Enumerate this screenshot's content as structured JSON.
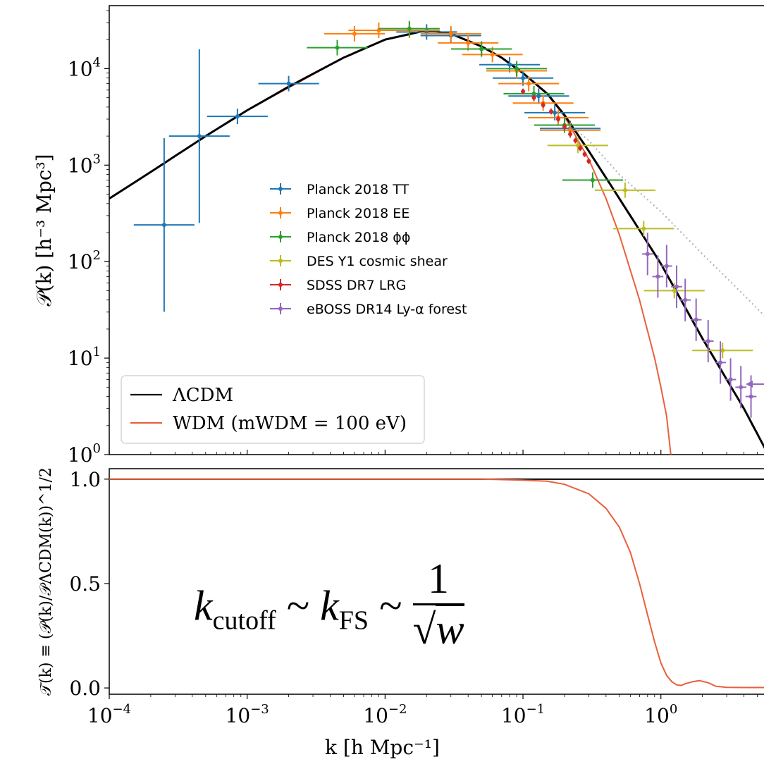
{
  "chart_data": [
    {
      "type": "line",
      "panel": "top",
      "ylabel": "𝒫(k) [h⁻³ Mpc³]",
      "xscale": "log",
      "yscale": "log",
      "xlim": [
        0.0001,
        6
      ],
      "ylim": [
        1,
        45000
      ],
      "x_ticks": [
        "10⁻⁴",
        "10⁻³",
        "10⁻²",
        "10⁻¹",
        "10⁰"
      ],
      "y_ticks": [
        "10⁰",
        "10¹",
        "10²",
        "10³",
        "10⁴"
      ],
      "legend_data": {
        "placement": "center-left",
        "entries": [
          "Planck 2018 TT",
          "Planck 2018 EE",
          "Planck 2018 ϕϕ",
          "DES Y1 cosmic shear",
          "SDSS DR7 LRG",
          "eBOSS DR14 Ly-α forest"
        ]
      },
      "legend_models": {
        "placement": "bottom-left",
        "entries": [
          "ΛCDM",
          "WDM (mWDM = 100 eV)"
        ]
      },
      "colors": {
        "lcdm": "#000000",
        "wdm": "#e8603c",
        "nonlinear": "#b0b0b0",
        "tt": "#1f77b4",
        "ee": "#ff7f0e",
        "pp": "#2ca02c",
        "des": "#bcbd22",
        "sdss": "#d62728",
        "eboss": "#9467bd"
      },
      "series": [
        {
          "name": "ΛCDM",
          "x": [
            0.0001,
            0.0002,
            0.0005,
            0.001,
            0.002,
            0.005,
            0.01,
            0.02,
            0.03,
            0.05,
            0.07,
            0.1,
            0.15,
            0.2,
            0.3,
            0.5,
            1,
            2,
            3,
            4,
            6
          ],
          "y": [
            450,
            850,
            2000,
            3700,
            6500,
            13000,
            20000,
            25000,
            23000,
            17000,
            13000,
            9000,
            5500,
            3300,
            1400,
            450,
            95,
            16,
            6,
            3,
            1
          ]
        },
        {
          "name": "WDM (mWDM = 100 eV)",
          "x": [
            0.0001,
            0.0005,
            0.001,
            0.005,
            0.01,
            0.02,
            0.03,
            0.05,
            0.07,
            0.1,
            0.15,
            0.2,
            0.3,
            0.4,
            0.5,
            0.7,
            0.9,
            1.0,
            1.1,
            1.18
          ],
          "y": [
            450,
            2000,
            3700,
            13000,
            20000,
            25000,
            23000,
            17000,
            13000,
            9000,
            5400,
            3200,
            1150,
            450,
            190,
            40,
            10,
            5,
            2.5,
            1
          ]
        },
        {
          "x": [
            0.2,
            0.3,
            0.5,
            1,
            2,
            4,
            6
          ],
          "y": [
            2900,
            1800,
            800,
            330,
            120,
            45,
            25
          ]
        },
        {
          "name": "Planck 2018 TT",
          "x": [
            0.00025,
            0.00045,
            0.00085,
            0.002,
            0.02,
            0.03,
            0.05,
            0.08,
            0.1,
            0.13,
            0.17,
            0.22
          ],
          "y": [
            240,
            2000,
            3200,
            7000,
            24000,
            22000,
            16000,
            11000,
            8000,
            5200,
            3500,
            2400
          ]
        },
        {
          "name": "Planck 2018 EE",
          "x": [
            0.006,
            0.009,
            0.015,
            0.03,
            0.04,
            0.05,
            0.06,
            0.09,
            0.11,
            0.14,
            0.18,
            0.22
          ],
          "y": [
            23000,
            25000,
            25000,
            23000,
            18500,
            16000,
            14000,
            9500,
            7000,
            4400,
            3100,
            2300
          ]
        },
        {
          "name": "Planck 2018 ϕϕ",
          "x": [
            0.0045,
            0.015,
            0.05,
            0.09,
            0.12,
            0.2,
            0.32
          ],
          "y": [
            16500,
            26000,
            16000,
            10000,
            5500,
            2600,
            700
          ]
        },
        {
          "name": "DES Y1 cosmic shear",
          "x": [
            0.25,
            0.55,
            0.75,
            1.25,
            2.8
          ],
          "y": [
            1600,
            550,
            220,
            50,
            12
          ]
        },
        {
          "name": "SDSS DR7 LRG",
          "x": [
            0.1,
            0.12,
            0.14,
            0.16,
            0.18,
            0.2,
            0.22,
            0.24,
            0.26,
            0.28,
            0.3
          ],
          "y": [
            5800,
            5000,
            4200,
            3600,
            3000,
            2500,
            2100,
            1800,
            1500,
            1300,
            1100
          ]
        },
        {
          "name": "eBOSS DR14 Ly-α forest",
          "x": [
            0.8,
            0.95,
            1.1,
            1.3,
            1.5,
            1.8,
            2.2,
            2.7,
            3.2,
            3.8,
            4.5
          ],
          "y": [
            120,
            70,
            90,
            55,
            40,
            25,
            15,
            9,
            6,
            5,
            4
          ]
        }
      ]
    },
    {
      "type": "line",
      "panel": "bottom",
      "xlabel": "k [h Mpc⁻¹]",
      "ylabel": "𝒯(k) ≡ (𝒫(k)/𝒫ΛCDM(k))^1/2",
      "xscale": "log",
      "xlim": [
        0.0001,
        6
      ],
      "ylim": [
        -0.03,
        1.05
      ],
      "x_ticks": [
        "10⁻⁴",
        "10⁻³",
        "10⁻²",
        "10⁻¹",
        "10⁰"
      ],
      "y_ticks": [
        "0.0",
        "0.5",
        "1.0"
      ],
      "series": [
        {
          "name": "ΛCDM",
          "x": [
            0.0001,
            6
          ],
          "y": [
            1,
            1
          ]
        },
        {
          "name": "WDM (mWDM = 100 eV)",
          "x": [
            0.0001,
            0.02,
            0.05,
            0.1,
            0.15,
            0.2,
            0.3,
            0.4,
            0.5,
            0.6,
            0.7,
            0.8,
            0.9,
            1.0,
            1.1,
            1.2,
            1.3,
            1.4,
            1.5,
            1.7,
            1.9,
            2.2,
            2.5,
            3,
            4,
            6
          ],
          "y": [
            1,
            1,
            1,
            0.995,
            0.99,
            0.975,
            0.93,
            0.86,
            0.77,
            0.65,
            0.5,
            0.35,
            0.22,
            0.12,
            0.06,
            0.03,
            0.015,
            0.012,
            0.02,
            0.03,
            0.035,
            0.025,
            0.008,
            0.003,
            0.002,
            0.002
          ]
        }
      ]
    }
  ],
  "annotation": {
    "formula_lhs": "k",
    "formula_lhs_sub": "cutoff",
    "formula_mid": "k",
    "formula_mid_sub": "FS",
    "formula_num": "1",
    "formula_den": "w"
  }
}
